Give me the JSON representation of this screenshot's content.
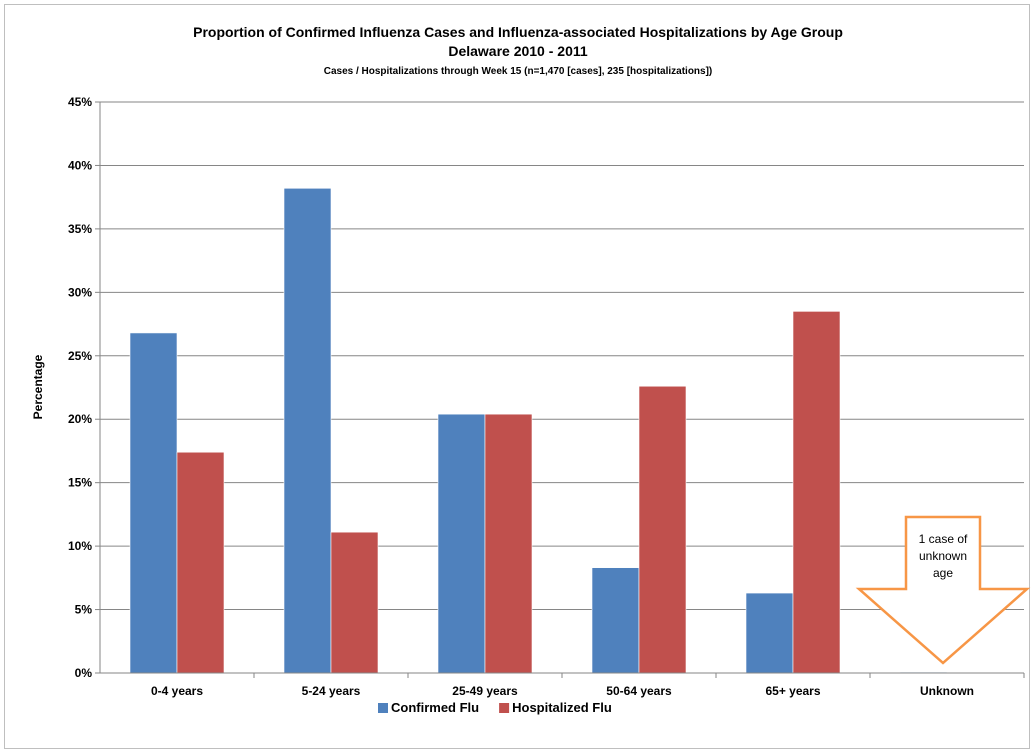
{
  "chart_data": {
    "type": "bar",
    "title": "Proportion of Confirmed Influenza Cases and Influenza-associated Hospitalizations by Age Group",
    "title_line2": "Delaware 2010 - 2011",
    "subtitle": "Cases / Hospitalizations  through Week 15 (n=1,470 [cases],  235 [hospitalizations])",
    "ylabel": "Percentage",
    "xlabel": "",
    "ylim": [
      0,
      45
    ],
    "yticks": [
      "0%",
      "5%",
      "10%",
      "15%",
      "20%",
      "25%",
      "30%",
      "35%",
      "40%",
      "45%"
    ],
    "categories": [
      "0-4 years",
      "5-24 years",
      "25-49 years",
      "50-64 years",
      "65+ years",
      "Unknown"
    ],
    "series": [
      {
        "name": "Confirmed Flu",
        "color": "#4f81bd",
        "values": [
          26.8,
          38.2,
          20.4,
          8.3,
          6.3,
          0.07
        ]
      },
      {
        "name": "Hospitalized Flu",
        "color": "#c0504d",
        "values": [
          17.4,
          11.1,
          20.4,
          22.6,
          28.5,
          0
        ]
      }
    ],
    "grid": true,
    "legend_position": "bottom",
    "annotation": {
      "lines": [
        "1 case of",
        "unknown",
        "age"
      ],
      "arrow_color": "#f79646",
      "target_category": "Unknown"
    }
  }
}
